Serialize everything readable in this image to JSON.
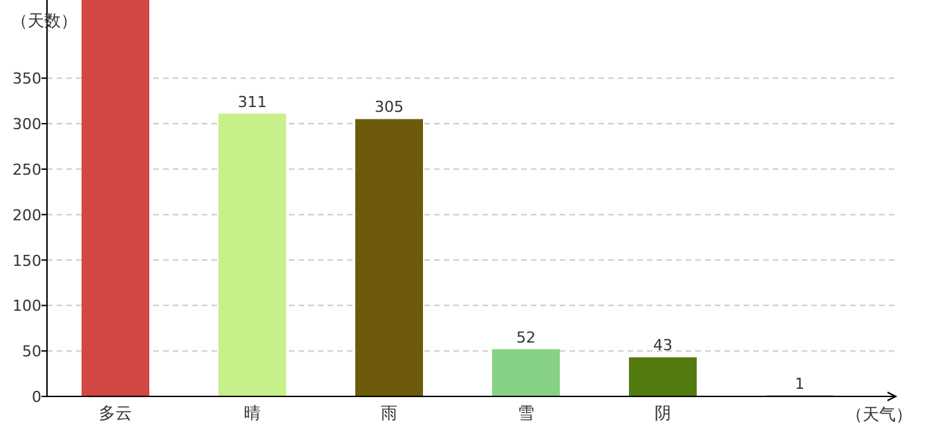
{
  "chart_data": {
    "type": "bar",
    "ylabel": "（天数）",
    "xlabel": "（天气）",
    "categories": [
      "多云",
      "晴",
      "雨",
      "雪",
      "阴",
      null
    ],
    "values": [
      436,
      311,
      305,
      52,
      43,
      1
    ],
    "colors": [
      "#d24643",
      "#c8f08a",
      "#6d5a0c",
      "#87d187",
      "#527a0e",
      "#5a1a8c"
    ],
    "value_labels": [
      null,
      "311",
      "305",
      "52",
      "43",
      "1"
    ],
    "ylim": [
      0,
      436
    ],
    "yticks": [
      0,
      50,
      100,
      150,
      200,
      250,
      300,
      350
    ],
    "grid": "y"
  }
}
